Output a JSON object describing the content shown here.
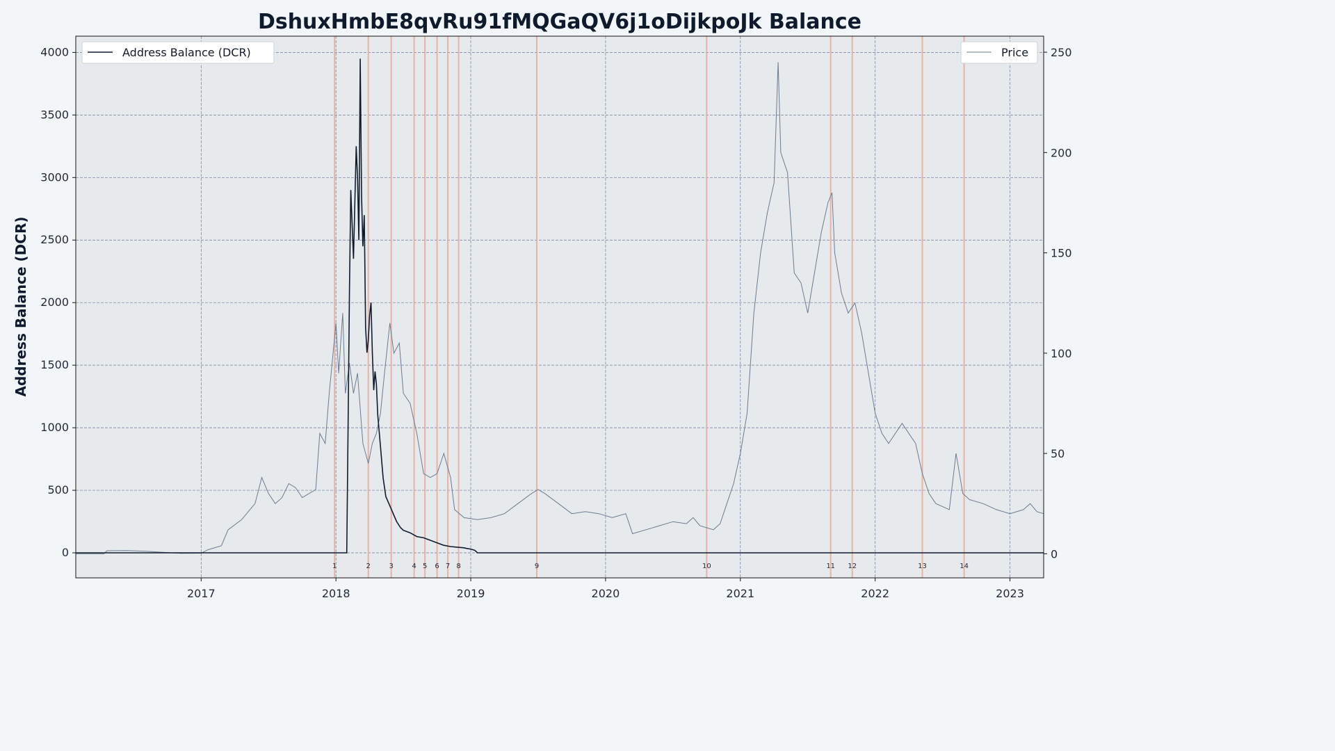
{
  "chart_data": {
    "type": "line",
    "title": "DshuxHmbE8qvRu91fMQGaQV6j1oDijkpoJk Balance",
    "ylabel": "Address Balance (DCR)",
    "xlabel": "",
    "xlim": [
      2016.07,
      2023.25
    ],
    "ylim_left": [
      -200,
      4130
    ],
    "ylim_right": [
      -12,
      258
    ],
    "x_ticks": [
      "2017",
      "2018",
      "2019",
      "2020",
      "2021",
      "2022",
      "2023"
    ],
    "x_tick_values": [
      2017,
      2018,
      2019,
      2020,
      2021,
      2022,
      2023
    ],
    "y_ticks_left": [
      0,
      500,
      1000,
      1500,
      2000,
      2500,
      3000,
      3500,
      4000
    ],
    "y_ticks_right": [
      0,
      50,
      100,
      150,
      200,
      250
    ],
    "grid": true,
    "legend_left": "top-left",
    "legend_right": "top-right",
    "colors": {
      "balance": "#0f1b2d",
      "price": "#6b7b8f",
      "event": "#e9a99c",
      "grid": "#6b7b99",
      "plot_bg": "#e6eaed"
    },
    "series": [
      {
        "name": "Address Balance (DCR)",
        "axis": "left",
        "points": [
          [
            2016.07,
            0
          ],
          [
            2018.07,
            0
          ],
          [
            2018.08,
            0
          ],
          [
            2018.09,
            1000
          ],
          [
            2018.1,
            2100
          ],
          [
            2018.11,
            2900
          ],
          [
            2018.13,
            2350
          ],
          [
            2018.15,
            3250
          ],
          [
            2018.16,
            3000
          ],
          [
            2018.17,
            2500
          ],
          [
            2018.18,
            3950
          ],
          [
            2018.19,
            2850
          ],
          [
            2018.2,
            2450
          ],
          [
            2018.21,
            2700
          ],
          [
            2018.22,
            1800
          ],
          [
            2018.23,
            1600
          ],
          [
            2018.24,
            1700
          ],
          [
            2018.25,
            1900
          ],
          [
            2018.26,
            2000
          ],
          [
            2018.27,
            1600
          ],
          [
            2018.28,
            1300
          ],
          [
            2018.29,
            1450
          ],
          [
            2018.3,
            1350
          ],
          [
            2018.31,
            1100
          ],
          [
            2018.33,
            850
          ],
          [
            2018.35,
            600
          ],
          [
            2018.37,
            450
          ],
          [
            2018.39,
            400
          ],
          [
            2018.41,
            350
          ],
          [
            2018.43,
            300
          ],
          [
            2018.45,
            250
          ],
          [
            2018.48,
            200
          ],
          [
            2018.5,
            180
          ],
          [
            2018.55,
            160
          ],
          [
            2018.6,
            130
          ],
          [
            2018.65,
            120
          ],
          [
            2018.7,
            100
          ],
          [
            2018.75,
            80
          ],
          [
            2018.8,
            60
          ],
          [
            2018.85,
            50
          ],
          [
            2018.9,
            45
          ],
          [
            2018.95,
            40
          ],
          [
            2018.97,
            35
          ],
          [
            2019.0,
            30
          ],
          [
            2019.03,
            20
          ],
          [
            2019.05,
            0
          ],
          [
            2023.25,
            0
          ]
        ]
      },
      {
        "name": "Price",
        "axis": "right",
        "points": [
          [
            2016.07,
            0
          ],
          [
            2016.28,
            0
          ],
          [
            2016.3,
            1.5
          ],
          [
            2016.45,
            1.6
          ],
          [
            2016.6,
            1.2
          ],
          [
            2016.75,
            0.6
          ],
          [
            2016.85,
            0.2
          ],
          [
            2017.0,
            0.3
          ],
          [
            2017.05,
            2
          ],
          [
            2017.15,
            4
          ],
          [
            2017.2,
            12
          ],
          [
            2017.3,
            17
          ],
          [
            2017.4,
            25
          ],
          [
            2017.45,
            38
          ],
          [
            2017.5,
            30
          ],
          [
            2017.55,
            25
          ],
          [
            2017.6,
            28
          ],
          [
            2017.65,
            35
          ],
          [
            2017.7,
            33
          ],
          [
            2017.75,
            28
          ],
          [
            2017.8,
            30
          ],
          [
            2017.85,
            32
          ],
          [
            2017.88,
            60
          ],
          [
            2017.92,
            55
          ],
          [
            2017.95,
            80
          ],
          [
            2018.0,
            115
          ],
          [
            2018.02,
            90
          ],
          [
            2018.05,
            120
          ],
          [
            2018.07,
            80
          ],
          [
            2018.1,
            95
          ],
          [
            2018.13,
            80
          ],
          [
            2018.16,
            90
          ],
          [
            2018.2,
            55
          ],
          [
            2018.24,
            45
          ],
          [
            2018.27,
            55
          ],
          [
            2018.3,
            60
          ],
          [
            2018.33,
            70
          ],
          [
            2018.36,
            90
          ],
          [
            2018.4,
            115
          ],
          [
            2018.43,
            100
          ],
          [
            2018.47,
            105
          ],
          [
            2018.5,
            80
          ],
          [
            2018.55,
            75
          ],
          [
            2018.6,
            60
          ],
          [
            2018.65,
            40
          ],
          [
            2018.7,
            38
          ],
          [
            2018.75,
            40
          ],
          [
            2018.8,
            50
          ],
          [
            2018.85,
            38
          ],
          [
            2018.88,
            22
          ],
          [
            2018.95,
            18
          ],
          [
            2019.05,
            17
          ],
          [
            2019.15,
            18
          ],
          [
            2019.25,
            20
          ],
          [
            2019.35,
            25
          ],
          [
            2019.45,
            30
          ],
          [
            2019.5,
            32
          ],
          [
            2019.55,
            30
          ],
          [
            2019.65,
            25
          ],
          [
            2019.75,
            20
          ],
          [
            2019.85,
            21
          ],
          [
            2019.95,
            20
          ],
          [
            2020.05,
            18
          ],
          [
            2020.15,
            20
          ],
          [
            2020.2,
            10
          ],
          [
            2020.3,
            12
          ],
          [
            2020.4,
            14
          ],
          [
            2020.5,
            16
          ],
          [
            2020.6,
            15
          ],
          [
            2020.65,
            18
          ],
          [
            2020.7,
            14
          ],
          [
            2020.8,
            12
          ],
          [
            2020.85,
            15
          ],
          [
            2020.9,
            25
          ],
          [
            2020.95,
            35
          ],
          [
            2021.0,
            50
          ],
          [
            2021.05,
            70
          ],
          [
            2021.1,
            120
          ],
          [
            2021.15,
            150
          ],
          [
            2021.2,
            170
          ],
          [
            2021.25,
            185
          ],
          [
            2021.28,
            245
          ],
          [
            2021.3,
            200
          ],
          [
            2021.35,
            190
          ],
          [
            2021.4,
            140
          ],
          [
            2021.45,
            135
          ],
          [
            2021.5,
            120
          ],
          [
            2021.55,
            140
          ],
          [
            2021.6,
            160
          ],
          [
            2021.65,
            175
          ],
          [
            2021.68,
            180
          ],
          [
            2021.7,
            150
          ],
          [
            2021.75,
            130
          ],
          [
            2021.8,
            120
          ],
          [
            2021.85,
            125
          ],
          [
            2021.9,
            110
          ],
          [
            2021.95,
            90
          ],
          [
            2022.0,
            70
          ],
          [
            2022.05,
            60
          ],
          [
            2022.1,
            55
          ],
          [
            2022.2,
            65
          ],
          [
            2022.3,
            55
          ],
          [
            2022.35,
            40
          ],
          [
            2022.4,
            30
          ],
          [
            2022.45,
            25
          ],
          [
            2022.55,
            22
          ],
          [
            2022.6,
            50
          ],
          [
            2022.65,
            30
          ],
          [
            2022.7,
            27
          ],
          [
            2022.8,
            25
          ],
          [
            2022.9,
            22
          ],
          [
            2023.0,
            20
          ],
          [
            2023.1,
            22
          ],
          [
            2023.15,
            25
          ],
          [
            2023.2,
            21
          ],
          [
            2023.25,
            20
          ]
        ]
      }
    ],
    "events": [
      {
        "label": "1",
        "x": 2017.99
      },
      {
        "label": "2",
        "x": 2018.24
      },
      {
        "label": "3",
        "x": 2018.41
      },
      {
        "label": "4",
        "x": 2018.58
      },
      {
        "label": "5",
        "x": 2018.66
      },
      {
        "label": "6",
        "x": 2018.75
      },
      {
        "label": "7",
        "x": 2018.83
      },
      {
        "label": "8",
        "x": 2018.91
      },
      {
        "label": "9",
        "x": 2019.49
      },
      {
        "label": "10",
        "x": 2020.75
      },
      {
        "label": "11",
        "x": 2021.67
      },
      {
        "label": "12",
        "x": 2021.83
      },
      {
        "label": "13",
        "x": 2022.35
      },
      {
        "label": "14",
        "x": 2022.66
      }
    ]
  }
}
